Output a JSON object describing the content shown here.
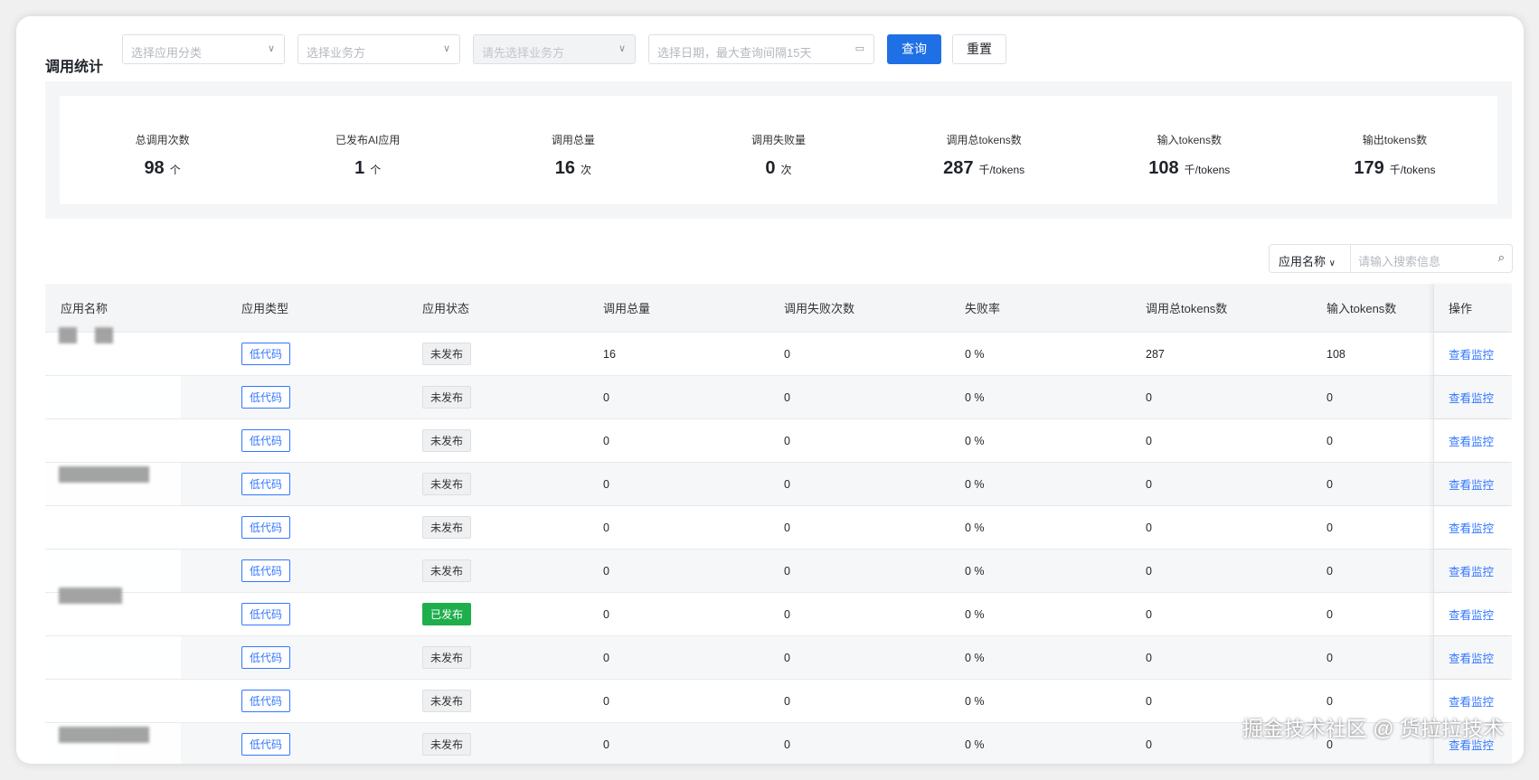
{
  "header": {
    "title": "调用统计"
  },
  "filters": {
    "category_placeholder": "选择应用分类",
    "business_placeholder": "选择业务方",
    "sub_placeholder": "请先选择业务方",
    "date_placeholder": "选择日期，最大查询间隔15天",
    "query_label": "查询",
    "reset_label": "重置"
  },
  "stats": [
    {
      "label": "总调用次数",
      "value": "98",
      "unit": "个"
    },
    {
      "label": "已发布AI应用",
      "value": "1",
      "unit": "个"
    },
    {
      "label": "调用总量",
      "value": "16",
      "unit": "次"
    },
    {
      "label": "调用失败量",
      "value": "0",
      "unit": "次"
    },
    {
      "label": "调用总tokens数",
      "value": "287",
      "unit": "千/tokens"
    },
    {
      "label": "输入tokens数",
      "value": "108",
      "unit": "千/tokens"
    },
    {
      "label": "输出tokens数",
      "value": "179",
      "unit": "千/tokens"
    }
  ],
  "search": {
    "field": "应用名称",
    "placeholder": "请输入搜索信息"
  },
  "table": {
    "columns": [
      "应用名称",
      "应用类型",
      "应用状态",
      "调用总量",
      "调用失败次数",
      "失败率",
      "调用总tokens数",
      "输入tokens数",
      "操作"
    ],
    "rows": [
      {
        "type": "低代码",
        "status": "未发布",
        "total": "16",
        "fail": "0",
        "rate": "0 %",
        "tokens": "287",
        "input": "108",
        "action": "查看监控"
      },
      {
        "type": "低代码",
        "status": "未发布",
        "total": "0",
        "fail": "0",
        "rate": "0 %",
        "tokens": "0",
        "input": "0",
        "action": "查看监控"
      },
      {
        "type": "低代码",
        "status": "未发布",
        "total": "0",
        "fail": "0",
        "rate": "0 %",
        "tokens": "0",
        "input": "0",
        "action": "查看监控"
      },
      {
        "type": "低代码",
        "status": "未发布",
        "total": "0",
        "fail": "0",
        "rate": "0 %",
        "tokens": "0",
        "input": "0",
        "action": "查看监控"
      },
      {
        "type": "低代码",
        "status": "未发布",
        "total": "0",
        "fail": "0",
        "rate": "0 %",
        "tokens": "0",
        "input": "0",
        "action": "查看监控"
      },
      {
        "type": "低代码",
        "status": "未发布",
        "total": "0",
        "fail": "0",
        "rate": "0 %",
        "tokens": "0",
        "input": "0",
        "action": "查看监控"
      },
      {
        "type": "低代码",
        "status": "已发布",
        "total": "0",
        "fail": "0",
        "rate": "0 %",
        "tokens": "0",
        "input": "0",
        "action": "查看监控"
      },
      {
        "type": "低代码",
        "status": "未发布",
        "total": "0",
        "fail": "0",
        "rate": "0 %",
        "tokens": "0",
        "input": "0",
        "action": "查看监控"
      },
      {
        "type": "低代码",
        "status": "未发布",
        "total": "0",
        "fail": "0",
        "rate": "0 %",
        "tokens": "0",
        "input": "0",
        "action": "查看监控"
      },
      {
        "type": "低代码",
        "status": "未发布",
        "total": "0",
        "fail": "0",
        "rate": "0 %",
        "tokens": "0",
        "input": "0",
        "action": "查看监控"
      }
    ]
  },
  "colors": {
    "primary": "#1f6fe5",
    "published": "#1fae4c",
    "link": "#3377ff"
  },
  "watermark": "掘金技术社区 @ 货拉拉技术"
}
